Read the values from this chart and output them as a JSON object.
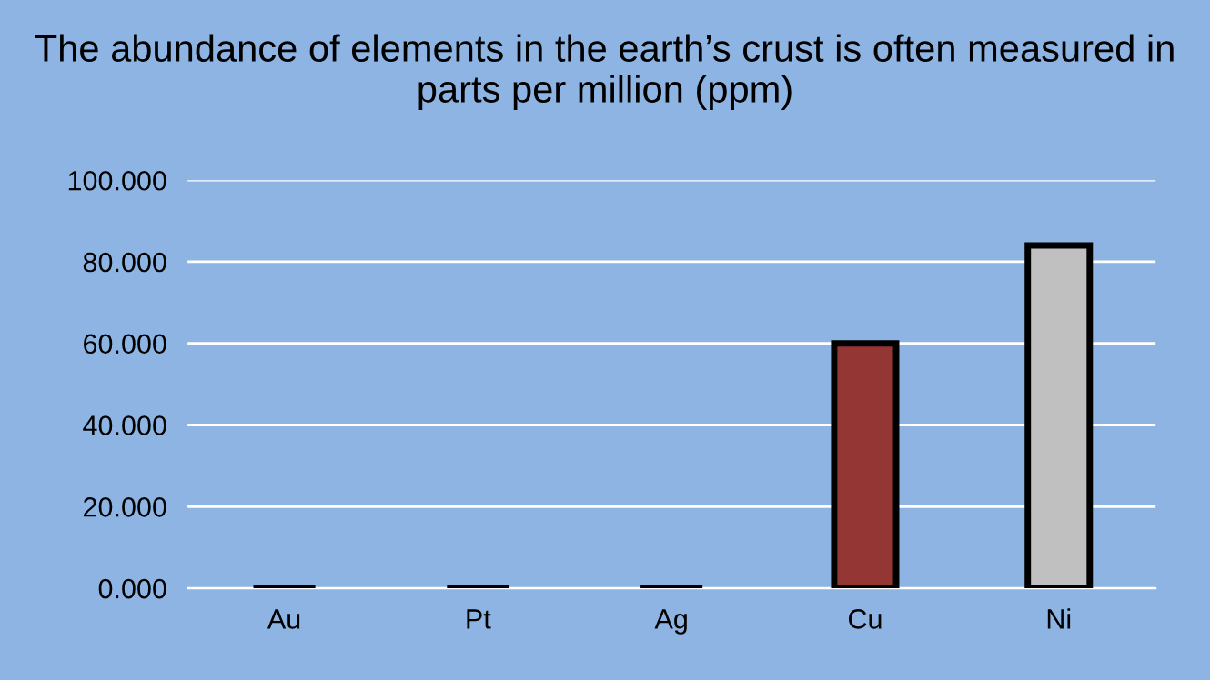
{
  "chart_data": {
    "type": "bar",
    "title": "The abundance of elements in the earth’s crust is often measured in parts per million (ppm)",
    "categories": [
      "Au",
      "Pt",
      "Ag",
      "Cu",
      "Ni"
    ],
    "values": [
      0,
      0,
      0,
      60,
      84
    ],
    "colors": [
      "#000000",
      "#000000",
      "#000000",
      "#943634",
      "#c0c0c0"
    ],
    "ylim": [
      0,
      100
    ],
    "yticks": [
      {
        "value": 0,
        "label": "0.000"
      },
      {
        "value": 20,
        "label": "20.000"
      },
      {
        "value": 40,
        "label": "40.000"
      },
      {
        "value": 60,
        "label": "60.000"
      },
      {
        "value": 80,
        "label": "80.000"
      },
      {
        "value": 100,
        "label": "100.000"
      }
    ],
    "grid": "y",
    "legend": false
  }
}
